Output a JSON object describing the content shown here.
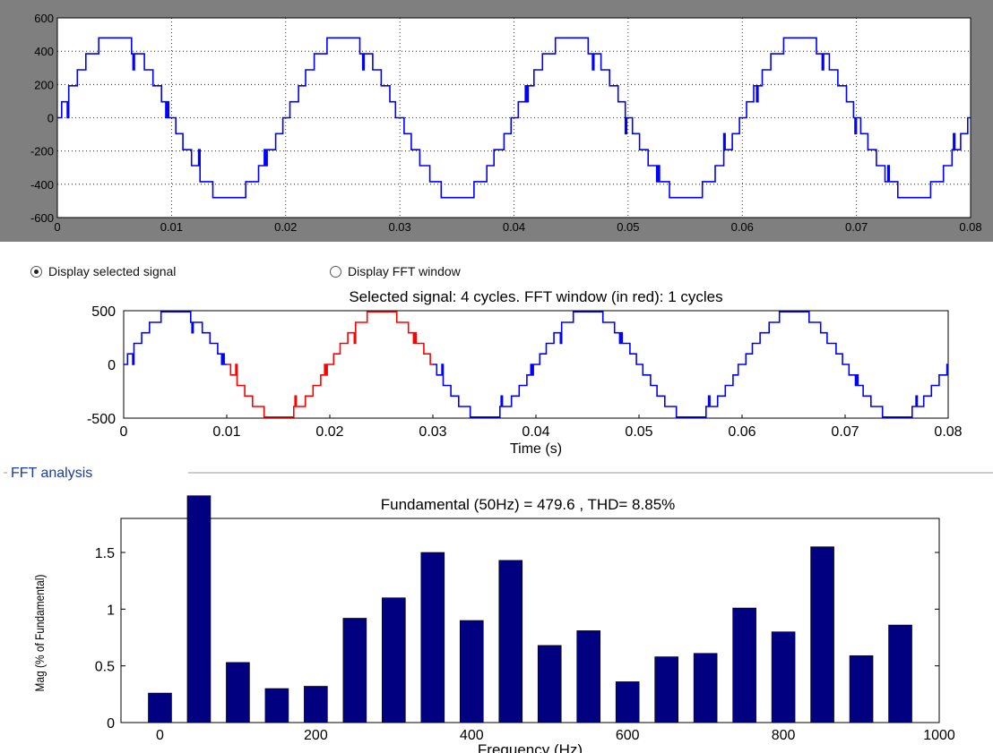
{
  "controls": {
    "display_selected_signal": "Display selected signal",
    "display_fft_window": "Display FFT window",
    "selected_option": "display_selected_signal"
  },
  "colors": {
    "top_background": "#7f7f7f",
    "signal_blue": "#0000ff",
    "fft_window_red": "#ff0000",
    "bar_navy": "#000080",
    "group_title": "#1a3aa0"
  },
  "chart_data": [
    {
      "type": "line",
      "title": "",
      "xlabel": "",
      "ylabel": "",
      "xlim": [
        0,
        0.08
      ],
      "ylim": [
        -600,
        600
      ],
      "x_ticks": [
        "0",
        "0.01",
        "0.02",
        "0.03",
        "0.04",
        "0.05",
        "0.06",
        "0.07",
        "0.08"
      ],
      "y_ticks": [
        "600",
        "400",
        "200",
        "0",
        "-200",
        "-400",
        "-600"
      ],
      "grid": true,
      "signal": {
        "frequency_hz": 50,
        "amplitude": 480,
        "levels": 11,
        "cycles": 4
      }
    },
    {
      "type": "line",
      "title": "Selected signal: 4 cycles. FFT window (in red): 1 cycles",
      "xlabel": "Time (s)",
      "ylabel": "",
      "xlim": [
        0,
        0.08
      ],
      "ylim": [
        -500,
        500
      ],
      "x_ticks": [
        "0",
        "0.01",
        "0.02",
        "0.03",
        "0.04",
        "0.05",
        "0.06",
        "0.07",
        "0.08"
      ],
      "y_ticks": [
        "500",
        "0",
        "-500"
      ],
      "grid": false,
      "fft_window": [
        0.01,
        0.03
      ]
    },
    {
      "type": "bar",
      "group_title": "FFT analysis",
      "title": "Fundamental (50Hz) = 479.6 , THD= 8.85%",
      "xlabel": "Frequency (Hz)",
      "ylabel": "Mag (% of Fundamental)",
      "xlim": [
        -50,
        1000
      ],
      "ylim": [
        0,
        1.8
      ],
      "x_ticks": [
        "0",
        "200",
        "400",
        "600",
        "800",
        "1000"
      ],
      "y_ticks": [
        "0",
        "0.5",
        "1",
        "1.5"
      ],
      "frequencies": [
        0,
        50,
        100,
        150,
        200,
        250,
        300,
        350,
        400,
        450,
        500,
        550,
        600,
        650,
        700,
        750,
        800,
        850,
        900,
        950
      ],
      "values": [
        0.26,
        2.0,
        0.53,
        0.3,
        0.32,
        0.92,
        1.1,
        1.5,
        0.9,
        1.43,
        0.68,
        0.81,
        0.36,
        0.58,
        0.61,
        1.01,
        0.8,
        1.55,
        0.59,
        0.86
      ]
    }
  ]
}
